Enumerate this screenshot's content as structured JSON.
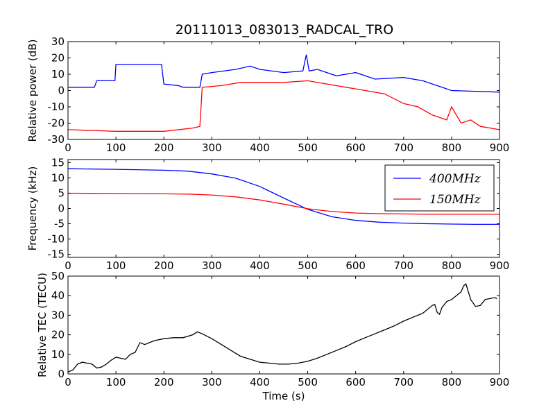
{
  "figure": {
    "title": "20111013_083013_RADCAL_TRO"
  },
  "chart_data": [
    {
      "type": "line",
      "ylabel": "Relative power (dB)",
      "xlim": [
        0,
        900
      ],
      "ylim": [
        -30,
        30
      ],
      "xticks": [
        "0",
        "100",
        "200",
        "300",
        "400",
        "500",
        "600",
        "700",
        "800",
        "900"
      ],
      "yticks": [
        "-30",
        "-20",
        "-10",
        "0",
        "10",
        "20",
        "30"
      ],
      "series": [
        {
          "color": "#0000ff",
          "x": [
            0,
            55,
            60,
            98,
            100,
            195,
            200,
            230,
            240,
            275,
            280,
            300,
            350,
            380,
            400,
            450,
            490,
            497,
            503,
            520,
            560,
            600,
            640,
            700,
            740,
            780,
            800,
            900
          ],
          "y": [
            2,
            2,
            6,
            6,
            16,
            16,
            4,
            3,
            2,
            2,
            10,
            11,
            13,
            15,
            13,
            11,
            12,
            22,
            12,
            13,
            9,
            11,
            7,
            8,
            6,
            2,
            0,
            -1
          ]
        },
        {
          "color": "#ff0000",
          "x": [
            0,
            100,
            200,
            260,
            275,
            280,
            320,
            360,
            400,
            450,
            500,
            540,
            580,
            620,
            660,
            700,
            730,
            760,
            790,
            800,
            820,
            840,
            860,
            900
          ],
          "y": [
            -24,
            -25,
            -25,
            -23,
            -22,
            2,
            3,
            5,
            5,
            5,
            6,
            4,
            2,
            0,
            -2,
            -8,
            -10,
            -15,
            -18,
            -10,
            -20,
            -18,
            -22,
            -24
          ]
        }
      ]
    },
    {
      "type": "line",
      "ylabel": "Frequency (kHz)",
      "xlim": [
        0,
        900
      ],
      "ylim": [
        -16,
        16
      ],
      "xticks": [
        "0",
        "100",
        "200",
        "300",
        "400",
        "500",
        "600",
        "700",
        "800",
        "900"
      ],
      "yticks": [
        "-15",
        "-10",
        "-5",
        "0",
        "5",
        "10",
        "15"
      ],
      "legend": {
        "placement": "top-right"
      },
      "series": [
        {
          "name": "400MHz",
          "color": "#0000ff",
          "x": [
            0,
            100,
            200,
            250,
            300,
            350,
            400,
            450,
            500,
            550,
            600,
            650,
            700,
            750,
            800,
            850,
            900
          ],
          "y": [
            13,
            12.8,
            12.5,
            12.2,
            11.3,
            9.9,
            7.2,
            3.4,
            -0.3,
            -2.7,
            -3.9,
            -4.5,
            -4.8,
            -5,
            -5.1,
            -5.2,
            -5.2
          ]
        },
        {
          "name": "150MHz",
          "color": "#ff0000",
          "x": [
            0,
            100,
            200,
            250,
            300,
            350,
            400,
            450,
            500,
            550,
            600,
            650,
            700,
            750,
            800,
            850,
            900
          ],
          "y": [
            5,
            4.9,
            4.8,
            4.7,
            4.4,
            3.8,
            2.8,
            1.4,
            -0.1,
            -1,
            -1.5,
            -1.7,
            -1.8,
            -1.9,
            -1.9,
            -1.9,
            -1.9
          ]
        }
      ]
    },
    {
      "type": "line",
      "ylabel": "Relative TEC (TECU)",
      "xlabel": "Time (s)",
      "xlim": [
        0,
        900
      ],
      "ylim": [
        0,
        50
      ],
      "xticks": [
        "0",
        "100",
        "200",
        "300",
        "400",
        "500",
        "600",
        "700",
        "800",
        "900"
      ],
      "yticks": [
        "0",
        "10",
        "20",
        "30",
        "40",
        "50"
      ],
      "series": [
        {
          "color": "#000000",
          "x": [
            0,
            10,
            20,
            30,
            40,
            50,
            60,
            70,
            80,
            90,
            100,
            110,
            120,
            130,
            140,
            150,
            160,
            170,
            180,
            200,
            220,
            240,
            260,
            270,
            280,
            300,
            320,
            340,
            360,
            380,
            400,
            420,
            440,
            460,
            480,
            500,
            520,
            540,
            560,
            580,
            600,
            620,
            640,
            660,
            680,
            700,
            710,
            720,
            730,
            740,
            750,
            760,
            765,
            770,
            775,
            780,
            790,
            800,
            810,
            820,
            825,
            830,
            840,
            850,
            860,
            870,
            880,
            890,
            895
          ],
          "y": [
            1,
            2,
            5,
            6,
            5.5,
            5,
            3,
            3.5,
            5,
            7,
            8.5,
            8,
            7.5,
            10,
            11,
            16,
            15,
            16,
            17,
            18,
            18.5,
            18.5,
            20,
            21.5,
            20.5,
            18,
            15,
            12,
            9,
            7.5,
            6,
            5.5,
            5,
            5,
            5.5,
            6.5,
            8,
            10,
            12,
            14,
            16.5,
            18.5,
            20.5,
            22.5,
            24.5,
            27,
            28,
            29,
            30,
            31,
            33,
            35,
            35.5,
            31.5,
            30.5,
            34,
            37,
            38,
            40,
            42,
            45,
            46,
            38,
            34.5,
            35,
            38,
            38.5,
            39,
            38.5
          ]
        }
      ]
    }
  ]
}
